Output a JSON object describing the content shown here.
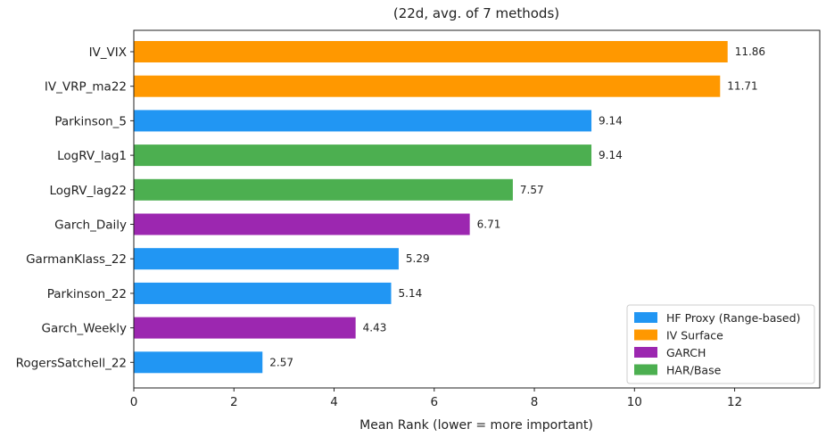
{
  "chart_data": {
    "type": "bar",
    "orientation": "horizontal",
    "title": "(22d, avg. of 7 methods)",
    "xlabel": "Mean Rank (lower = more important)",
    "ylabel": "",
    "xlim": [
      0,
      13.7
    ],
    "xticks": [
      0,
      2,
      4,
      6,
      8,
      10,
      12
    ],
    "grid": false,
    "legend_position": "bottom-right",
    "categories": [
      "IV_VIX",
      "IV_VRP_ma22",
      "Parkinson_5",
      "LogRV_lag1",
      "LogRV_lag22",
      "Garch_Daily",
      "GarmanKlass_22",
      "Parkinson_22",
      "Garch_Weekly",
      "RogersSatchell_22"
    ],
    "values": [
      11.86,
      11.71,
      9.14,
      9.14,
      7.57,
      6.71,
      5.29,
      5.14,
      4.43,
      2.57
    ],
    "value_labels": [
      "11.86",
      "11.71",
      "9.14",
      "9.14",
      "7.57",
      "6.71",
      "5.29",
      "5.14",
      "4.43",
      "2.57"
    ],
    "groups": [
      "IV Surface",
      "IV Surface",
      "HF Proxy (Range-based)",
      "HAR/Base",
      "HAR/Base",
      "GARCH",
      "HF Proxy (Range-based)",
      "HF Proxy (Range-based)",
      "GARCH",
      "HF Proxy (Range-based)"
    ],
    "legend": [
      {
        "name": "HF Proxy (Range-based)",
        "color": "#2196F3"
      },
      {
        "name": "IV Surface",
        "color": "#FF9800"
      },
      {
        "name": "GARCH",
        "color": "#9C27B0"
      },
      {
        "name": "HAR/Base",
        "color": "#4CAF50"
      }
    ]
  }
}
